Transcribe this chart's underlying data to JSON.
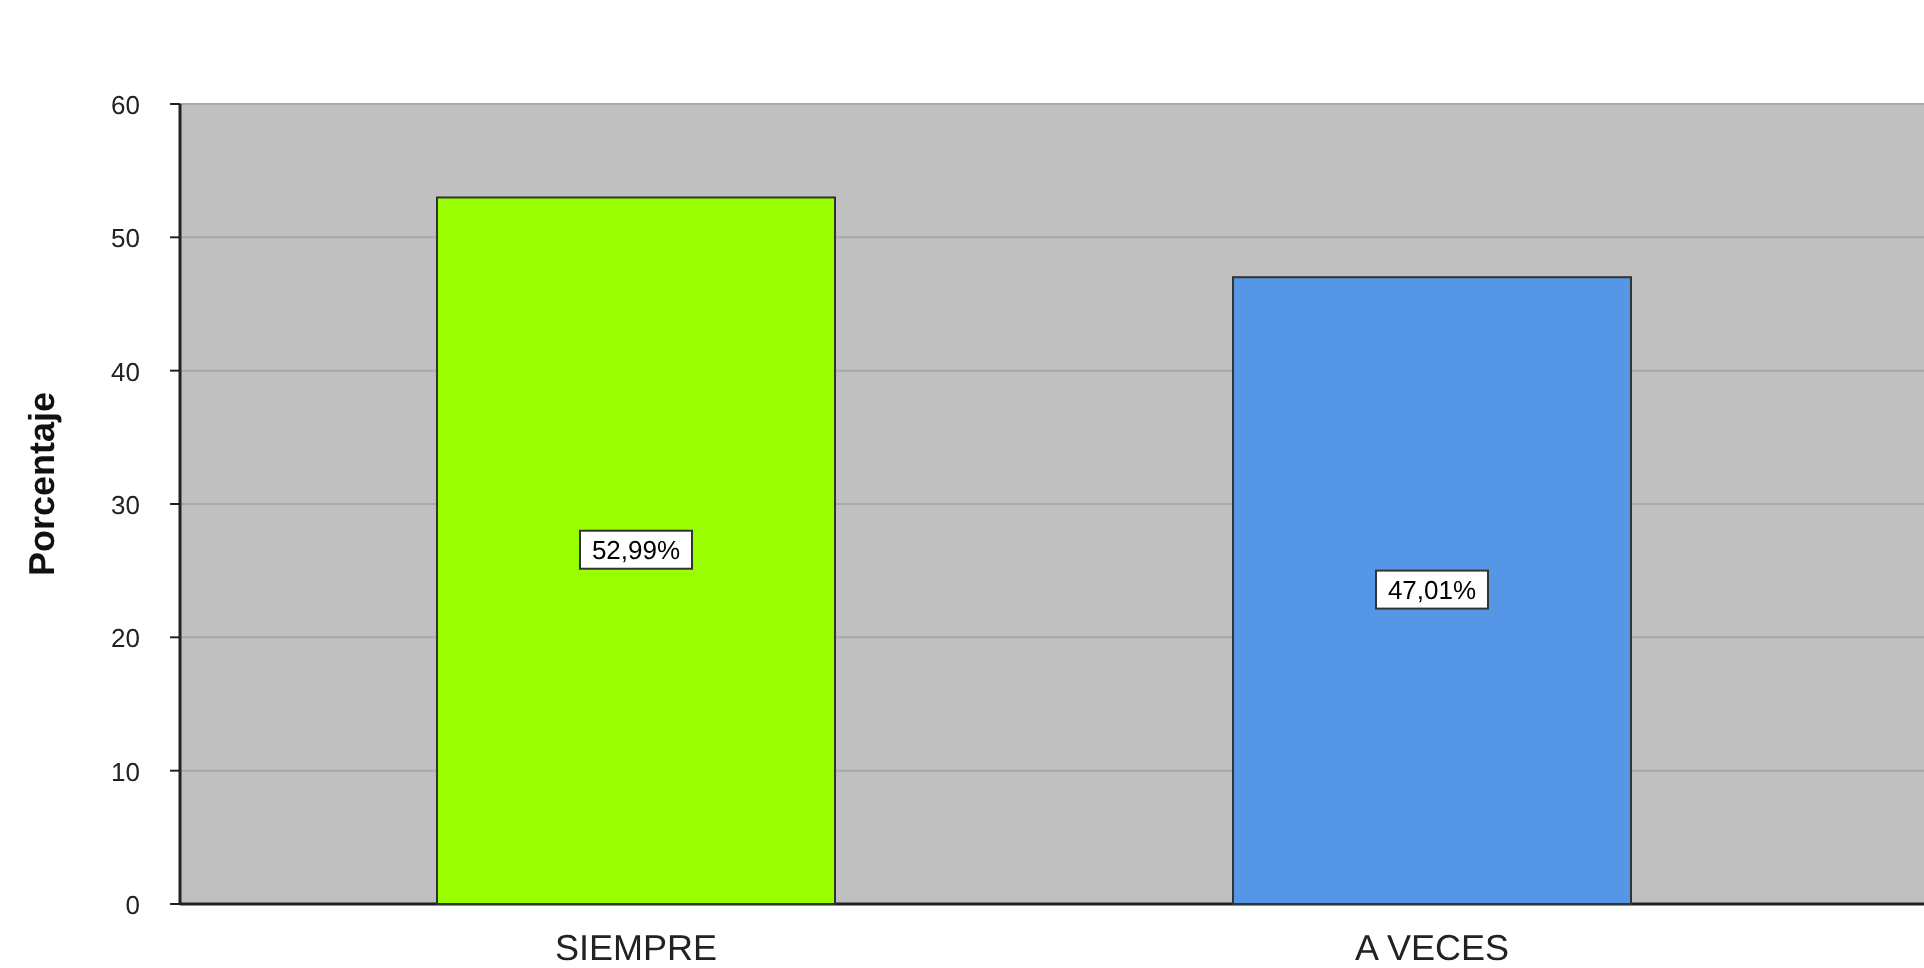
{
  "chart_data": {
    "type": "bar",
    "ylabel": "Porcentaje",
    "categories": [
      "SIEMPRE",
      "A VECES"
    ],
    "values": [
      52.99,
      47.01
    ],
    "colors": [
      "#99ff00",
      "#5596e6"
    ],
    "value_labels": [
      "52,99%",
      "47,01%"
    ],
    "ylim": [
      0,
      60
    ],
    "yticks": [
      0,
      10,
      20,
      30,
      40,
      50,
      60
    ],
    "grid": "y"
  }
}
